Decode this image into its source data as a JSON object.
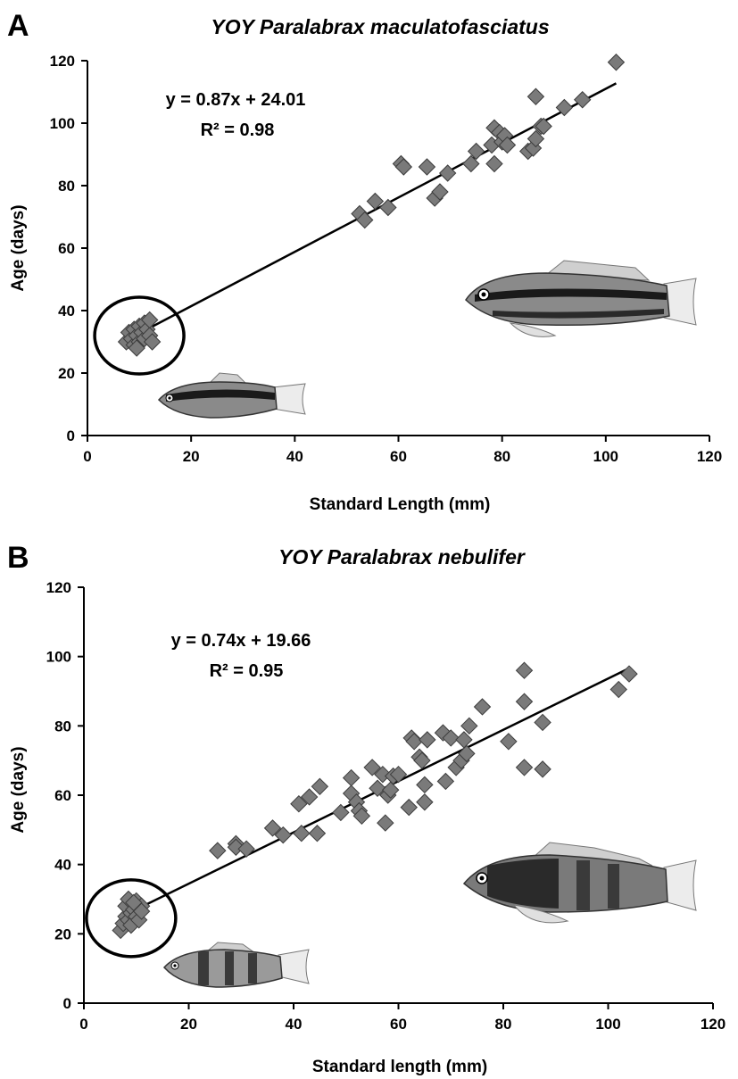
{
  "chart_data": [
    {
      "type": "scatter",
      "panel": "A",
      "title": "YOY Paralabrax maculatofasciatus",
      "xlabel": "Standard Length (mm)",
      "ylabel": "Age (days)",
      "xlim": [
        0,
        120
      ],
      "ylim": [
        0,
        120
      ],
      "xticks": [
        "0",
        "20",
        "40",
        "60",
        "80",
        "100",
        "120"
      ],
      "yticks": [
        "0",
        "20",
        "40",
        "60",
        "80",
        "100",
        "120"
      ],
      "equation": "y = 0.87x + 24.01",
      "r2": "R² = 0.98",
      "trendline": {
        "slope": 0.87,
        "intercept": 24.01,
        "x_range": [
          7,
          102
        ]
      },
      "highlight_circle": {
        "cx": 10,
        "cy": 32,
        "label": ""
      },
      "marker_color": "#7a7a7a",
      "points": [
        {
          "x": 7.5,
          "y": 30
        },
        {
          "x": 8,
          "y": 33
        },
        {
          "x": 8.5,
          "y": 31
        },
        {
          "x": 9,
          "y": 29
        },
        {
          "x": 9,
          "y": 34
        },
        {
          "x": 9.5,
          "y": 32
        },
        {
          "x": 10,
          "y": 35
        },
        {
          "x": 10,
          "y": 30
        },
        {
          "x": 10.5,
          "y": 33
        },
        {
          "x": 11,
          "y": 31
        },
        {
          "x": 11,
          "y": 36
        },
        {
          "x": 11.5,
          "y": 34
        },
        {
          "x": 12,
          "y": 32
        },
        {
          "x": 12.5,
          "y": 30
        },
        {
          "x": 12,
          "y": 37
        },
        {
          "x": 9.5,
          "y": 28
        },
        {
          "x": 52.5,
          "y": 71
        },
        {
          "x": 53.5,
          "y": 69
        },
        {
          "x": 55.5,
          "y": 75
        },
        {
          "x": 58,
          "y": 73
        },
        {
          "x": 60.5,
          "y": 87
        },
        {
          "x": 61,
          "y": 86
        },
        {
          "x": 65.5,
          "y": 86
        },
        {
          "x": 67,
          "y": 76
        },
        {
          "x": 68,
          "y": 78
        },
        {
          "x": 69.5,
          "y": 84
        },
        {
          "x": 74,
          "y": 87
        },
        {
          "x": 75,
          "y": 91
        },
        {
          "x": 78.5,
          "y": 87
        },
        {
          "x": 78,
          "y": 93
        },
        {
          "x": 78.5,
          "y": 98.5
        },
        {
          "x": 79.5,
          "y": 97
        },
        {
          "x": 80,
          "y": 94
        },
        {
          "x": 80.5,
          "y": 96
        },
        {
          "x": 81,
          "y": 93
        },
        {
          "x": 85,
          "y": 91
        },
        {
          "x": 86,
          "y": 92
        },
        {
          "x": 86.5,
          "y": 95
        },
        {
          "x": 86.5,
          "y": 108.5
        },
        {
          "x": 87.5,
          "y": 99
        },
        {
          "x": 88,
          "y": 99
        },
        {
          "x": 92,
          "y": 105
        },
        {
          "x": 95.5,
          "y": 107.5
        },
        {
          "x": 102,
          "y": 119.5
        }
      ]
    },
    {
      "type": "scatter",
      "panel": "B",
      "title": "YOY Paralabrax nebulifer",
      "xlabel": "Standard length (mm)",
      "ylabel": "Age (days)",
      "xlim": [
        0,
        120
      ],
      "ylim": [
        0,
        120
      ],
      "xticks": [
        "0",
        "20",
        "40",
        "60",
        "80",
        "100",
        "120"
      ],
      "yticks": [
        "0",
        "20",
        "40",
        "60",
        "80",
        "100",
        "120"
      ],
      "equation": "y = 0.74x + 19.66",
      "r2": "R² = 0.95",
      "trendline": {
        "slope": 0.74,
        "intercept": 19.66,
        "x_range": [
          7,
          104
        ]
      },
      "highlight_circle": {
        "cx": 9,
        "cy": 24.5,
        "label": ""
      },
      "marker_color": "#7a7a7a",
      "points": [
        {
          "x": 7,
          "y": 21
        },
        {
          "x": 7.5,
          "y": 23
        },
        {
          "x": 8,
          "y": 25
        },
        {
          "x": 8,
          "y": 28
        },
        {
          "x": 8.5,
          "y": 24
        },
        {
          "x": 8.5,
          "y": 30
        },
        {
          "x": 9,
          "y": 26
        },
        {
          "x": 9,
          "y": 22.5
        },
        {
          "x": 9.5,
          "y": 27
        },
        {
          "x": 10,
          "y": 25
        },
        {
          "x": 10,
          "y": 29.5
        },
        {
          "x": 10.5,
          "y": 24
        },
        {
          "x": 11,
          "y": 28
        },
        {
          "x": 11,
          "y": 26.5
        },
        {
          "x": 9.5,
          "y": 29
        },
        {
          "x": 25.5,
          "y": 44
        },
        {
          "x": 29,
          "y": 46
        },
        {
          "x": 29,
          "y": 45
        },
        {
          "x": 31,
          "y": 44.5
        },
        {
          "x": 36,
          "y": 50.5
        },
        {
          "x": 38,
          "y": 48.5
        },
        {
          "x": 41,
          "y": 57.5
        },
        {
          "x": 41.5,
          "y": 49
        },
        {
          "x": 43,
          "y": 59.5
        },
        {
          "x": 44.5,
          "y": 49
        },
        {
          "x": 45,
          "y": 62.5
        },
        {
          "x": 49,
          "y": 55
        },
        {
          "x": 51,
          "y": 60.5
        },
        {
          "x": 51,
          "y": 65
        },
        {
          "x": 52,
          "y": 58
        },
        {
          "x": 52.5,
          "y": 55.5
        },
        {
          "x": 53,
          "y": 54
        },
        {
          "x": 55,
          "y": 68
        },
        {
          "x": 56,
          "y": 62
        },
        {
          "x": 57,
          "y": 66
        },
        {
          "x": 57.5,
          "y": 52
        },
        {
          "x": 58,
          "y": 60
        },
        {
          "x": 58.5,
          "y": 61.5
        },
        {
          "x": 59,
          "y": 65.5
        },
        {
          "x": 60,
          "y": 66
        },
        {
          "x": 62,
          "y": 56.5
        },
        {
          "x": 62.5,
          "y": 76.5
        },
        {
          "x": 63,
          "y": 75.5
        },
        {
          "x": 64,
          "y": 71
        },
        {
          "x": 64.5,
          "y": 70
        },
        {
          "x": 65,
          "y": 63
        },
        {
          "x": 65,
          "y": 58
        },
        {
          "x": 65.5,
          "y": 76
        },
        {
          "x": 68.5,
          "y": 78
        },
        {
          "x": 69,
          "y": 64
        },
        {
          "x": 70,
          "y": 76.5
        },
        {
          "x": 71,
          "y": 68
        },
        {
          "x": 72,
          "y": 70
        },
        {
          "x": 72.5,
          "y": 76
        },
        {
          "x": 73,
          "y": 72
        },
        {
          "x": 73.5,
          "y": 80
        },
        {
          "x": 76,
          "y": 85.5
        },
        {
          "x": 81,
          "y": 75.5
        },
        {
          "x": 84,
          "y": 96
        },
        {
          "x": 84,
          "y": 87
        },
        {
          "x": 84,
          "y": 68
        },
        {
          "x": 87.5,
          "y": 81
        },
        {
          "x": 87.5,
          "y": 67.5
        },
        {
          "x": 102,
          "y": 90.5
        },
        {
          "x": 104,
          "y": 95
        }
      ]
    }
  ],
  "colors": {
    "marker_fill": "#7a7a7a",
    "marker_stroke": "#3c3c3c",
    "line": "#000000",
    "fish_body": "#8a8a8a",
    "fish_stripe": "#1a1a1a"
  }
}
